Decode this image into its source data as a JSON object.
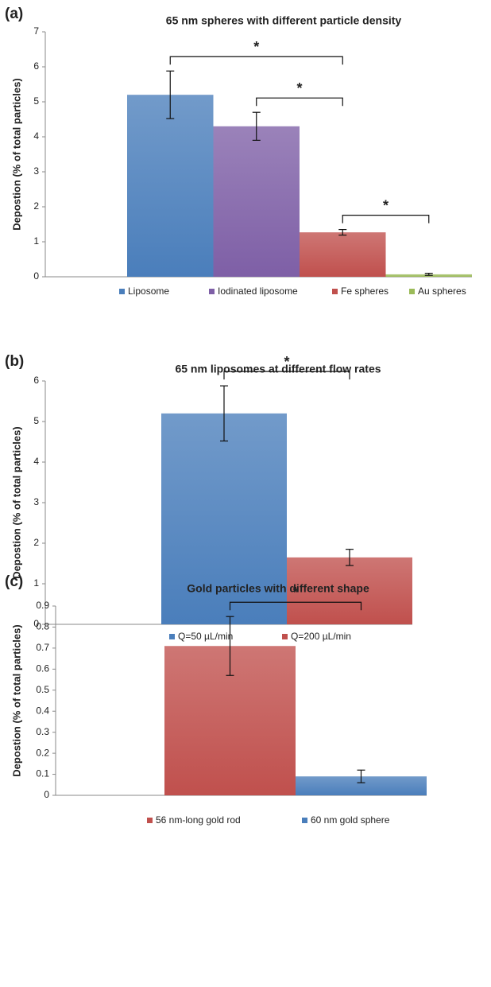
{
  "chart_data": [
    {
      "type": "bar",
      "panel": "(a)",
      "title": "65 nm spheres with different particle density",
      "y_label": "Depostion (% of total particles)",
      "ylim": [
        0,
        7
      ],
      "yticks": [
        0,
        1,
        2,
        3,
        4,
        5,
        6,
        7
      ],
      "series": [
        {
          "name": "Liposome",
          "color": "#4a7ebb",
          "values": [
            5.2
          ],
          "errors": [
            0.68
          ]
        },
        {
          "name": "Iodinated liposome",
          "color": "#7e5fa6",
          "values": [
            4.3
          ],
          "errors": [
            0.4
          ]
        },
        {
          "name": "Fe spheres",
          "color": "#c0504d",
          "values": [
            1.27
          ],
          "errors": [
            0.08
          ]
        },
        {
          "name": "Au spheres",
          "color": "#9bbb59",
          "values": [
            0.07
          ],
          "errors": [
            0.03
          ]
        }
      ],
      "significance": [
        {
          "between": [
            0,
            2
          ],
          "label": "*"
        },
        {
          "between": [
            1,
            2
          ],
          "label": "*"
        },
        {
          "between": [
            2,
            3
          ],
          "label": "*"
        }
      ]
    },
    {
      "type": "bar",
      "panel": "(b)",
      "title": "65 nm liposomes at different flow rates",
      "y_label": "Depostion (% of total particles)",
      "ylim": [
        0,
        6
      ],
      "yticks": [
        0,
        1,
        2,
        3,
        4,
        5,
        6
      ],
      "series": [
        {
          "name": "Q=50 µL/min",
          "color": "#4a7ebb",
          "values": [
            5.2
          ],
          "errors": [
            0.68
          ]
        },
        {
          "name": "Q=200 µL/min",
          "color": "#c0504d",
          "values": [
            1.65
          ],
          "errors": [
            0.2
          ]
        }
      ],
      "significance": [
        {
          "between": [
            0,
            1
          ],
          "label": "*"
        }
      ]
    },
    {
      "type": "bar",
      "panel": "(c)",
      "title": "Gold particles with different shape",
      "y_label": "Depostion (% of total particles)",
      "ylim": [
        0,
        0.9
      ],
      "yticks": [
        0,
        0.1,
        0.2,
        0.3,
        0.4,
        0.5,
        0.6,
        0.7,
        0.8,
        0.9
      ],
      "series": [
        {
          "name": "56 nm-long gold rod",
          "color": "#c0504d",
          "values": [
            0.71
          ],
          "errors": [
            0.14
          ]
        },
        {
          "name": "60 nm gold sphere",
          "color": "#4a7ebb",
          "values": [
            0.09
          ],
          "errors": [
            0.03
          ]
        }
      ],
      "significance": [
        {
          "between": [
            0,
            1
          ],
          "label": "*"
        }
      ]
    }
  ]
}
